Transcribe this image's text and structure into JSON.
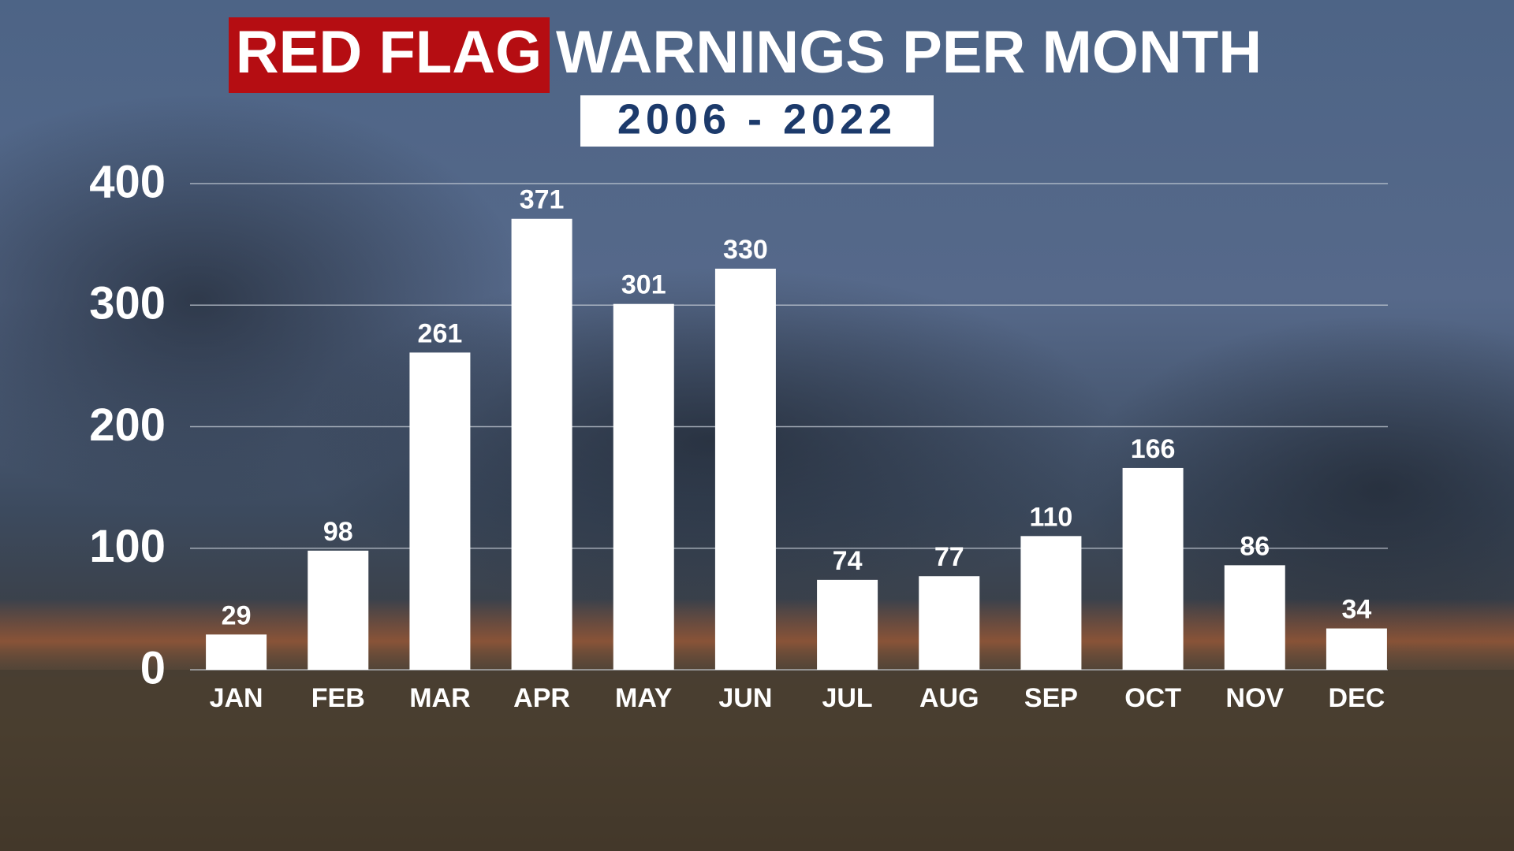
{
  "chart_data": {
    "type": "bar",
    "title_highlight": "RED FLAG",
    "title": "WARNINGS PER MONTH",
    "subtitle": "2006 - 2022",
    "categories": [
      "JAN",
      "FEB",
      "MAR",
      "APR",
      "MAY",
      "JUN",
      "JUL",
      "AUG",
      "SEP",
      "OCT",
      "NOV",
      "DEC"
    ],
    "values": [
      29,
      98,
      261,
      371,
      301,
      330,
      74,
      77,
      110,
      166,
      86,
      34
    ],
    "color": "#ffffff",
    "ylim": [
      0,
      400
    ],
    "yticks": [
      0,
      100,
      200,
      300,
      400
    ],
    "grid": true
  }
}
